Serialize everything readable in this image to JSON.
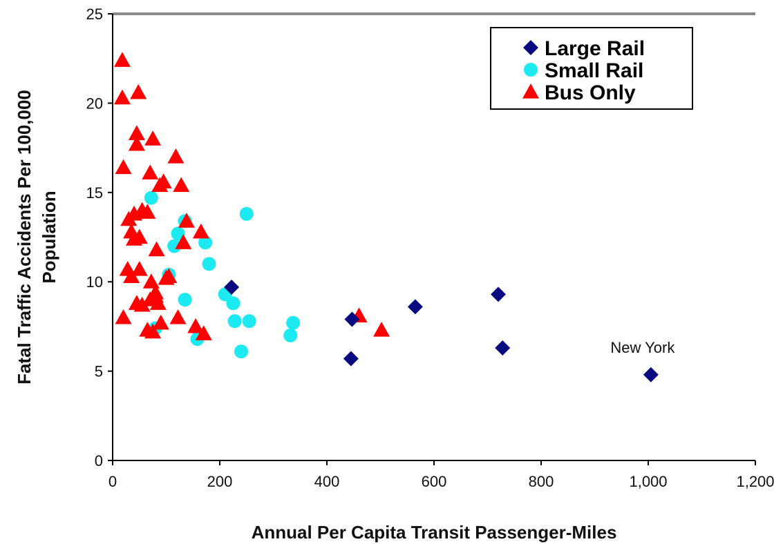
{
  "chart_data": {
    "type": "scatter",
    "xlabel": "Annual Per Capita Transit Passenger-Miles",
    "ylabel": "Fatal Traffic Accidents Per 100,000 Population",
    "xlim": [
      0,
      1200
    ],
    "ylim": [
      0,
      25
    ],
    "x_ticks": [
      0,
      200,
      400,
      600,
      800,
      1000,
      1200
    ],
    "x_tick_labels": [
      "0",
      "200",
      "400",
      "600",
      "800",
      "1,000",
      "1,200"
    ],
    "y_ticks": [
      0,
      5,
      10,
      15,
      20,
      25
    ],
    "y_tick_labels": [
      "0",
      "5",
      "10",
      "15",
      "20",
      "25"
    ],
    "grid": false,
    "legend_position": "top-right",
    "series": [
      {
        "name": "Large Rail",
        "marker": "diamond",
        "color": "#0a0a80",
        "points": [
          [
            222,
            9.7
          ],
          [
            447,
            7.9
          ],
          [
            445,
            5.7
          ],
          [
            565,
            8.6
          ],
          [
            720,
            9.3
          ],
          [
            728,
            6.3
          ],
          [
            1005,
            4.8
          ]
        ]
      },
      {
        "name": "Small Rail",
        "marker": "circle",
        "color": "#1de9f0",
        "points": [
          [
            72,
            14.7
          ],
          [
            80,
            7.4
          ],
          [
            105,
            10.4
          ],
          [
            115,
            12.0
          ],
          [
            122,
            12.7
          ],
          [
            135,
            9.0
          ],
          [
            135,
            13.4
          ],
          [
            158,
            6.8
          ],
          [
            173,
            12.2
          ],
          [
            180,
            11.0
          ],
          [
            210,
            9.3
          ],
          [
            225,
            8.8
          ],
          [
            228,
            7.8
          ],
          [
            240,
            6.1
          ],
          [
            250,
            13.8
          ],
          [
            255,
            7.8
          ],
          [
            332,
            7.0
          ],
          [
            337,
            7.7
          ]
        ]
      },
      {
        "name": "Bus Only",
        "marker": "triangle",
        "color": "#ff0000",
        "points": [
          [
            18,
            22.4
          ],
          [
            18,
            20.3
          ],
          [
            48,
            20.6
          ],
          [
            45,
            18.3
          ],
          [
            45,
            17.7
          ],
          [
            75,
            18.0
          ],
          [
            20,
            16.4
          ],
          [
            70,
            16.1
          ],
          [
            95,
            15.6
          ],
          [
            88,
            15.4
          ],
          [
            118,
            17.0
          ],
          [
            128,
            15.4
          ],
          [
            30,
            13.5
          ],
          [
            40,
            13.8
          ],
          [
            55,
            14.0
          ],
          [
            65,
            13.9
          ],
          [
            35,
            12.8
          ],
          [
            40,
            12.4
          ],
          [
            50,
            12.5
          ],
          [
            82,
            11.8
          ],
          [
            138,
            13.4
          ],
          [
            132,
            12.2
          ],
          [
            165,
            12.8
          ],
          [
            28,
            10.7
          ],
          [
            35,
            10.3
          ],
          [
            50,
            10.7
          ],
          [
            72,
            10.0
          ],
          [
            80,
            9.4
          ],
          [
            100,
            10.2
          ],
          [
            105,
            10.3
          ],
          [
            20,
            8.0
          ],
          [
            45,
            8.8
          ],
          [
            55,
            8.7
          ],
          [
            70,
            9.0
          ],
          [
            80,
            9.2
          ],
          [
            85,
            8.8
          ],
          [
            65,
            7.3
          ],
          [
            75,
            7.2
          ],
          [
            90,
            7.7
          ],
          [
            122,
            8.0
          ],
          [
            155,
            7.5
          ],
          [
            170,
            7.1
          ],
          [
            460,
            8.1
          ],
          [
            502,
            7.3
          ]
        ]
      }
    ],
    "annotations": [
      {
        "text": "New York",
        "x": 1005,
        "y": 4.8
      }
    ]
  }
}
